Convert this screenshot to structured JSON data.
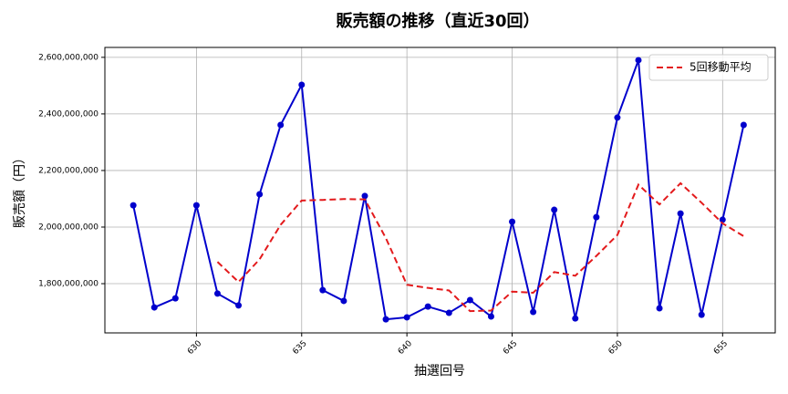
{
  "chart_data": {
    "type": "line",
    "title": "販売額の推移（直近30回）",
    "xlabel": "抽選回号",
    "ylabel": "販売額（円）",
    "x": [
      627,
      628,
      629,
      630,
      631,
      632,
      633,
      634,
      635,
      636,
      637,
      638,
      639,
      640,
      641,
      642,
      643,
      644,
      645,
      646,
      647,
      648,
      649,
      650,
      651,
      652,
      653,
      654,
      655,
      656
    ],
    "series": [
      {
        "color": "#0000cc",
        "marker": true,
        "dashed": false,
        "values": [
          2077000000,
          1716000000,
          1748000000,
          2077000000,
          1765000000,
          1723000000,
          2116000000,
          2361000000,
          2503000000,
          1777000000,
          1739000000,
          2110000000,
          1674000000,
          1681000000,
          1719000000,
          1697000000,
          1742000000,
          1684000000,
          2019000000,
          1700000000,
          2061000000,
          1677000000,
          2035000000,
          2387000000,
          2590000000,
          1713000000,
          2048000000,
          1690000000,
          2026000000,
          2361000000
        ]
      },
      {
        "name": "5回移動平均",
        "color": "#e31a1c",
        "marker": false,
        "dashed": true,
        "values": [
          null,
          null,
          null,
          null,
          1877000000,
          1806000000,
          1886000000,
          2008000000,
          2094000000,
          2096000000,
          2099000000,
          2098000000,
          1961000000,
          1796000000,
          1785000000,
          1776000000,
          1703000000,
          1705000000,
          1772000000,
          1768000000,
          1841000000,
          1828000000,
          1898000000,
          1972000000,
          2150000000,
          2080000000,
          2155000000,
          2086000000,
          2013000000,
          1968000000
        ]
      }
    ],
    "xlim": [
      625.65,
      657.5
    ],
    "ylim": [
      1626000000,
      2635000000
    ],
    "xticks": [
      630,
      635,
      640,
      645,
      650,
      655
    ],
    "yticks": [
      {
        "value": 1800000000,
        "label": "1,800,000,000"
      },
      {
        "value": 2000000000,
        "label": "2,000,000,000"
      },
      {
        "value": 2200000000,
        "label": "2,200,000,000"
      },
      {
        "value": 2400000000,
        "label": "2,400,000,000"
      },
      {
        "value": 2600000000,
        "label": "2,600,000,000"
      }
    ],
    "grid": true,
    "legend": "upper right"
  }
}
